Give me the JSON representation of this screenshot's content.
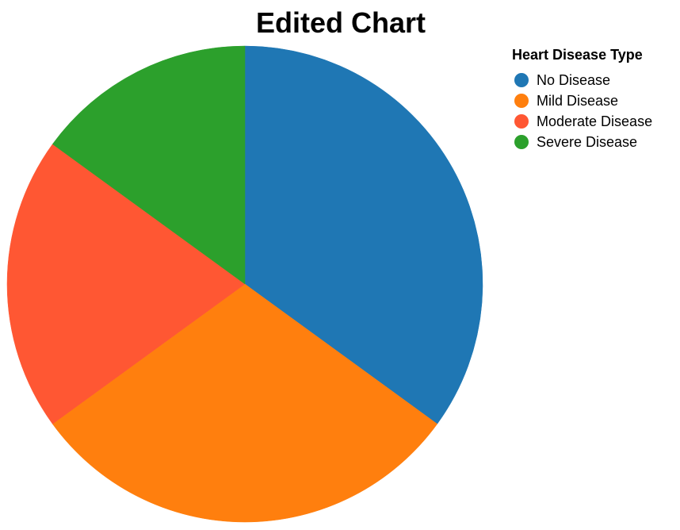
{
  "chart_data": {
    "type": "pie",
    "title": "Edited Chart",
    "legend": {
      "title": "Heart Disease Type",
      "placement": "top-right"
    },
    "categories": [
      "No Disease",
      "Mild Disease",
      "Moderate Disease",
      "Severe Disease"
    ],
    "values": [
      35,
      30,
      20,
      15
    ],
    "colors": [
      "#1f77b4",
      "#ff7f0e",
      "#ff5733",
      "#2ca02c"
    ],
    "start_angle": "12 o'clock",
    "direction": "clockwise"
  }
}
